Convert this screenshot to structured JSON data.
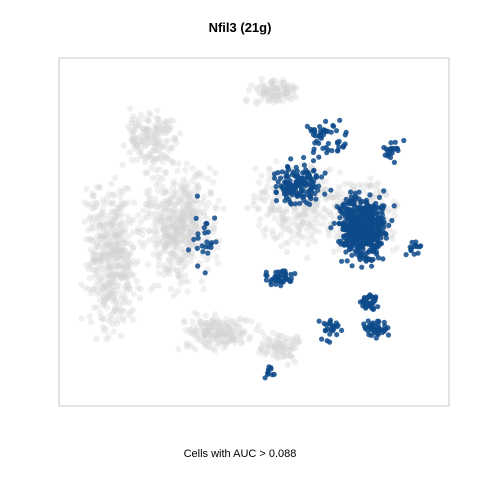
{
  "chart_data": {
    "type": "scatter",
    "title": "Nfil3 (21g)",
    "caption": "Cells with AUC > 0.088",
    "xlabel": "",
    "ylabel": "",
    "xlim": [
      0,
      100
    ],
    "ylim": [
      0,
      100
    ],
    "grid": false,
    "axis_ticks": false,
    "colors": {
      "background_cells": "#d3d3d3",
      "auc_cells": "#0d4a8a",
      "frame": "#c8c8c8"
    },
    "series": [
      {
        "role": "all-cells",
        "clusters": [
          {
            "cx": 12,
            "cy": 58,
            "rx": 10,
            "ry": 30,
            "n": 450
          },
          {
            "cx": 30,
            "cy": 48,
            "rx": 13,
            "ry": 24,
            "n": 480
          },
          {
            "cx": 23,
            "cy": 22,
            "rx": 10,
            "ry": 12,
            "n": 160
          },
          {
            "cx": 40,
            "cy": 80,
            "rx": 14,
            "ry": 7,
            "n": 180
          },
          {
            "cx": 57,
            "cy": 85,
            "rx": 7,
            "ry": 6,
            "n": 80
          },
          {
            "cx": 55,
            "cy": 8,
            "rx": 10,
            "ry": 5,
            "n": 100
          },
          {
            "cx": 62,
            "cy": 42,
            "rx": 18,
            "ry": 18,
            "n": 260
          },
          {
            "cx": 80,
            "cy": 45,
            "rx": 14,
            "ry": 16,
            "n": 220
          }
        ]
      },
      {
        "role": "auc-cells",
        "clusters": [
          {
            "cx": 79,
            "cy": 49,
            "rx": 9,
            "ry": 13,
            "n": 520
          },
          {
            "cx": 62,
            "cy": 36,
            "rx": 9,
            "ry": 10,
            "n": 150
          },
          {
            "cx": 57,
            "cy": 64,
            "rx": 5,
            "ry": 3,
            "n": 50
          },
          {
            "cx": 81,
            "cy": 71,
            "rx": 4,
            "ry": 3,
            "n": 45
          },
          {
            "cx": 83,
            "cy": 79,
            "rx": 5,
            "ry": 4,
            "n": 40
          },
          {
            "cx": 71,
            "cy": 80,
            "rx": 4,
            "ry": 5,
            "n": 25
          },
          {
            "cx": 54,
            "cy": 92,
            "rx": 2,
            "ry": 3,
            "n": 10
          },
          {
            "cx": 70,
            "cy": 22,
            "rx": 10,
            "ry": 8,
            "n": 50
          },
          {
            "cx": 37,
            "cy": 52,
            "rx": 6,
            "ry": 14,
            "n": 25
          },
          {
            "cx": 93,
            "cy": 55,
            "rx": 3,
            "ry": 3,
            "n": 14
          },
          {
            "cx": 87,
            "cy": 25,
            "rx": 5,
            "ry": 5,
            "n": 20
          }
        ]
      }
    ]
  }
}
